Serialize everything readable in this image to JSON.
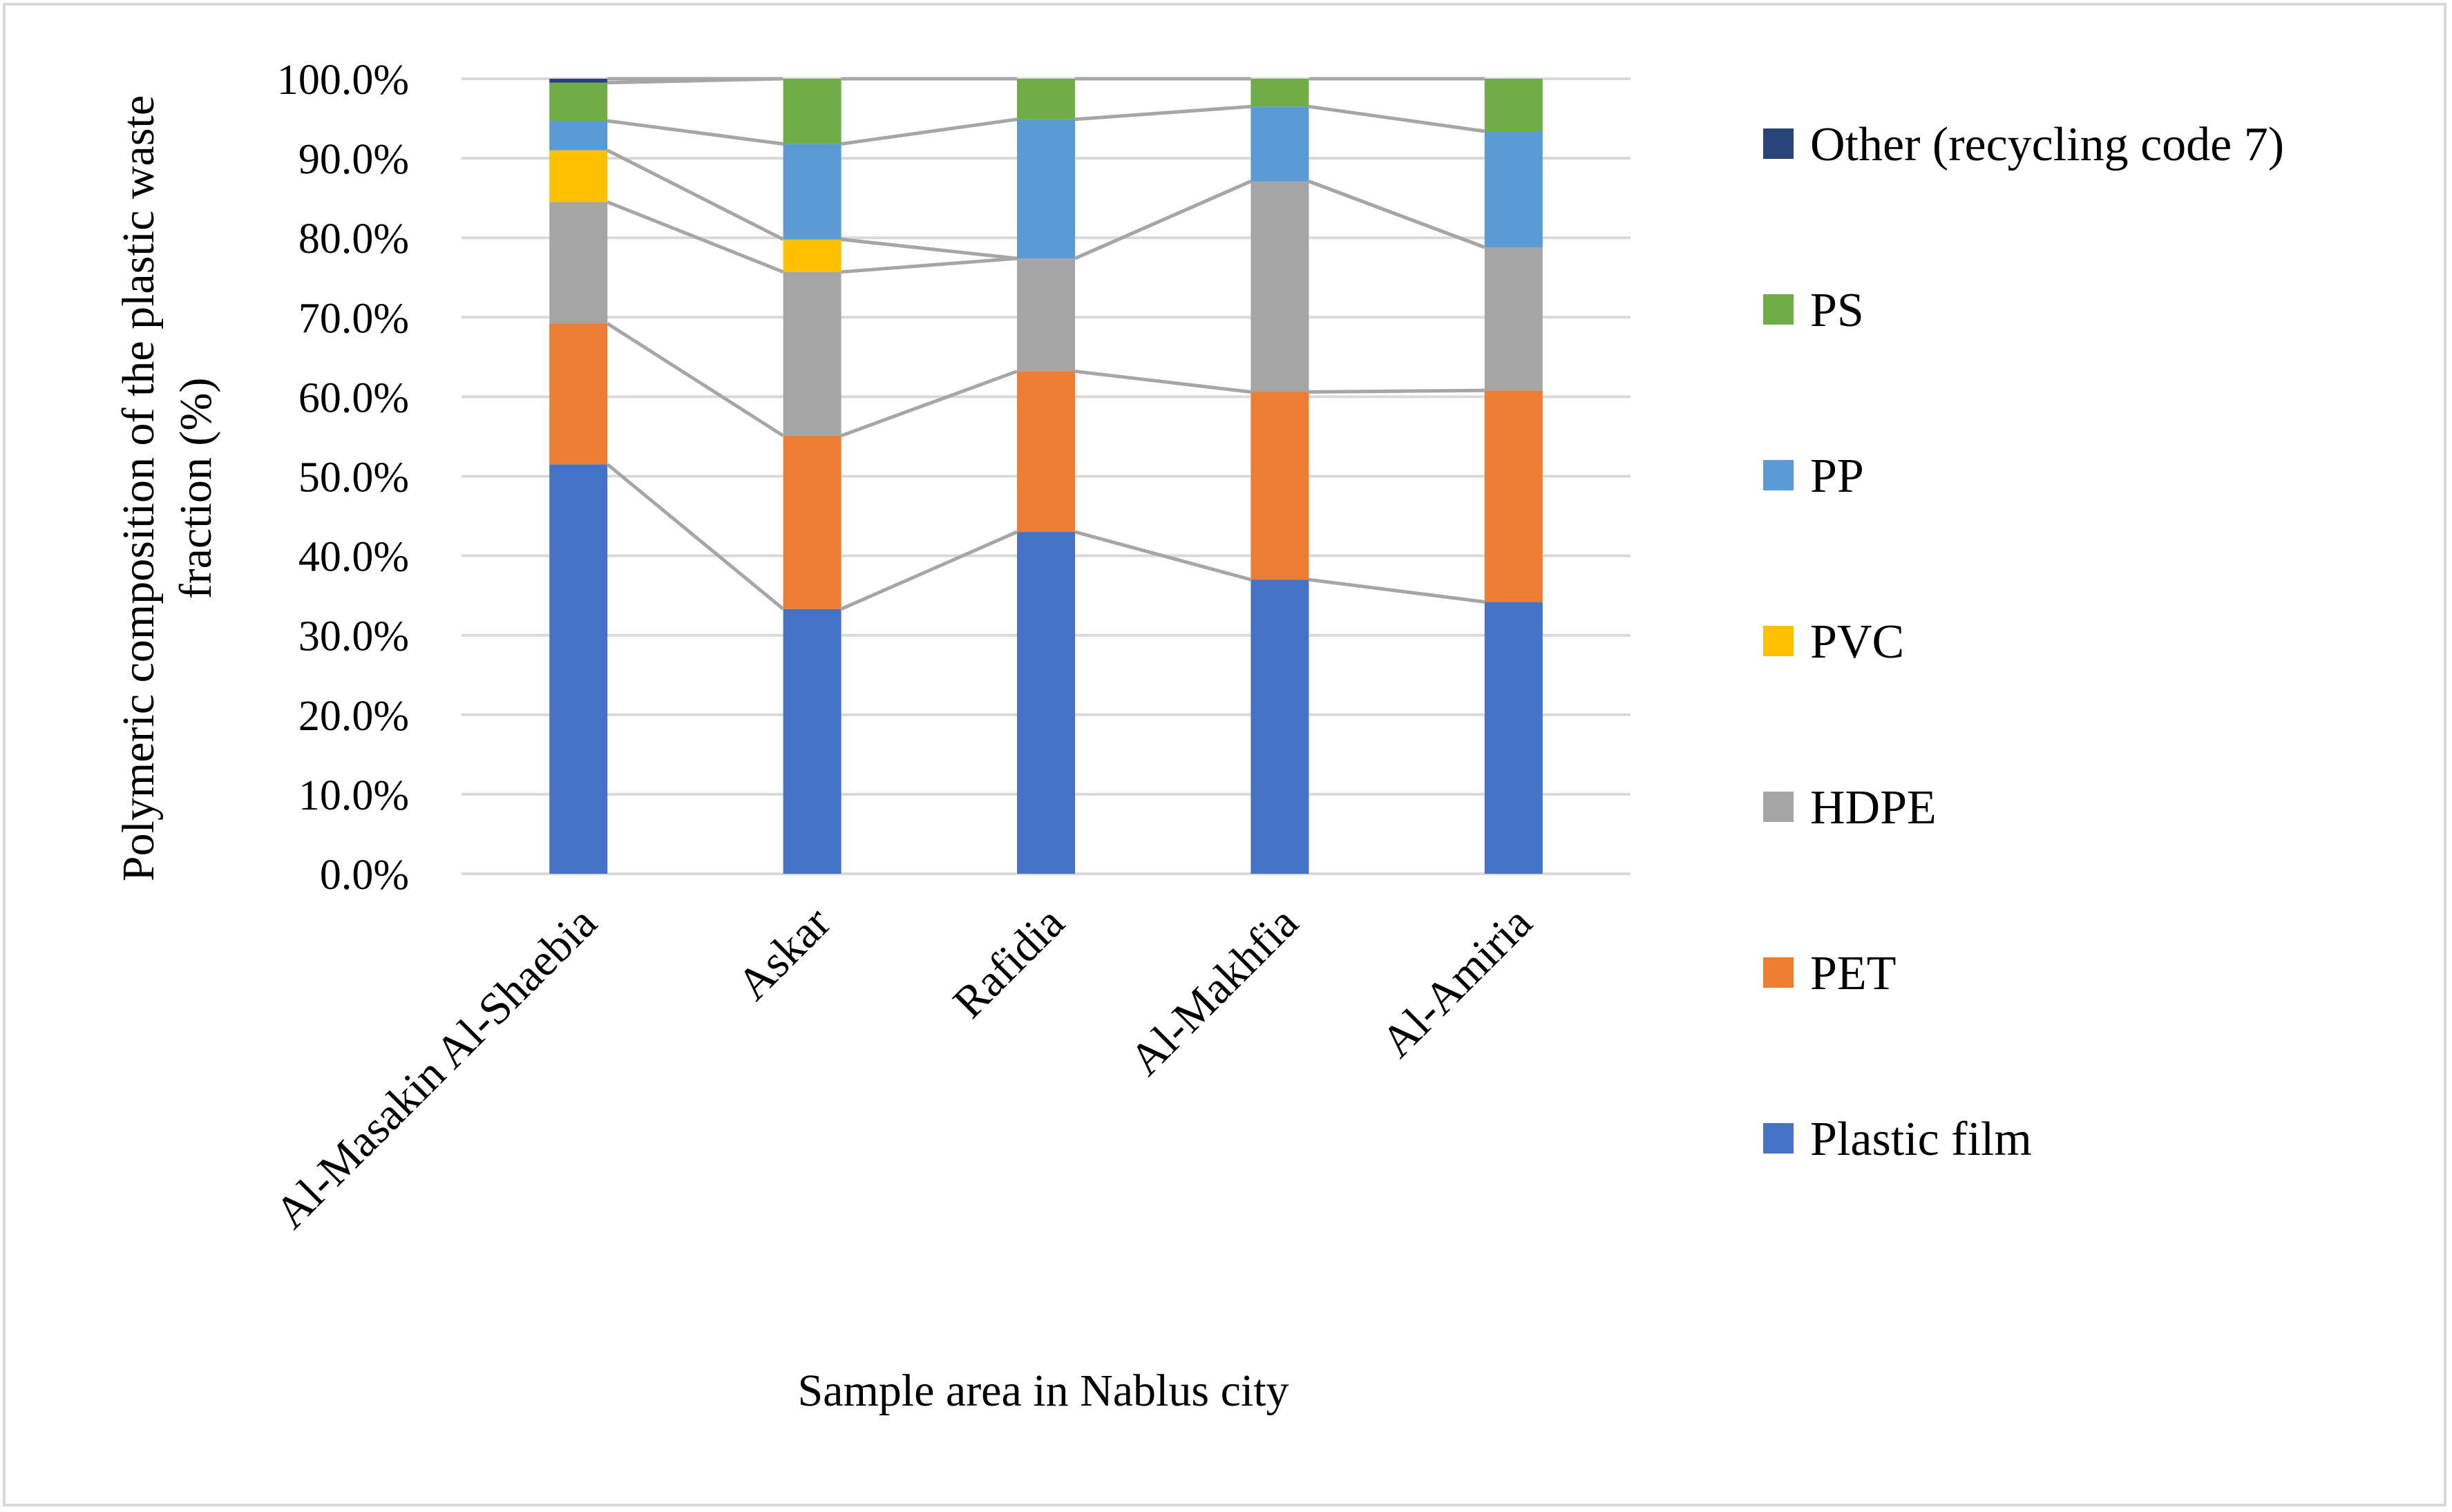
{
  "chart_data": {
    "type": "bar",
    "stacked": true,
    "percent_scale": true,
    "title": "",
    "xlabel": "Sample area in Nablus city",
    "ylabel_lines": [
      "Polymeric composition of the plastic waste",
      "fraction (%)"
    ],
    "ylim": [
      0,
      100
    ],
    "ytick_labels": [
      "0.0%",
      "10.0%",
      "20.0%",
      "30.0%",
      "40.0%",
      "50.0%",
      "60.0%",
      "70.0%",
      "80.0%",
      "90.0%",
      "100.0%"
    ],
    "grid": true,
    "series_lines": true,
    "legend_position": "right",
    "categories": [
      "Al-Masakin Al-Shaebia",
      "Askar",
      "Rafidia",
      "Al-Makhfia",
      "Al-Amiria"
    ],
    "series": [
      {
        "name": "Plastic film",
        "color": "#4472C4",
        "values": [
          51.5,
          33.3,
          43.0,
          37.0,
          34.2
        ]
      },
      {
        "name": "PET",
        "color": "#ED7D31",
        "values": [
          17.7,
          21.8,
          20.2,
          23.6,
          26.6
        ]
      },
      {
        "name": "HDPE",
        "color": "#A5A5A5",
        "values": [
          15.3,
          20.6,
          14.2,
          26.5,
          18.0
        ]
      },
      {
        "name": "PVC",
        "color": "#FFC000",
        "values": [
          6.5,
          4.1,
          0.0,
          0.0,
          0.0
        ]
      },
      {
        "name": "PP",
        "color": "#5B9BD5",
        "values": [
          3.7,
          12.0,
          17.5,
          9.4,
          14.6
        ]
      },
      {
        "name": "PS",
        "color": "#70AD47",
        "values": [
          4.8,
          8.2,
          5.1,
          3.5,
          6.6
        ]
      },
      {
        "name": "Other (recycling code 7)",
        "color": "#264478",
        "values": [
          0.5,
          0.0,
          0.0,
          0.0,
          0.0
        ]
      }
    ],
    "gridline_color": "#d9d9d9",
    "connector_color": "#a6a6a6"
  }
}
